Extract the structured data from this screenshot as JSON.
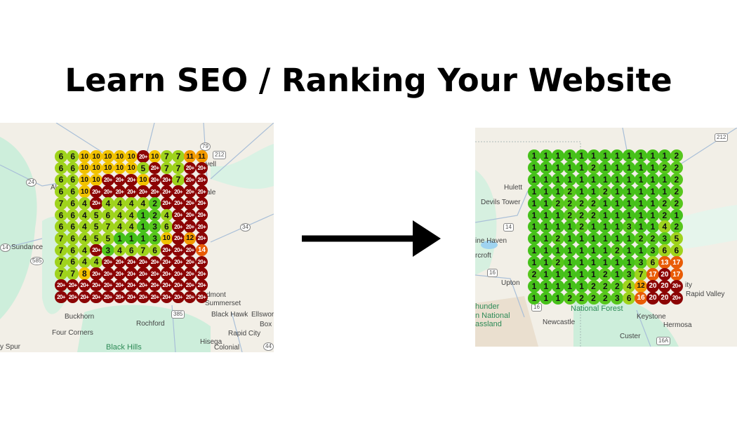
{
  "title": "Learn SEO / Ranking Your Website",
  "colors": {
    "rank_1": "#46c11a",
    "rank_2_3": "#57c71c",
    "rank_4_7": "#9fd31d",
    "rank_8_10": "#f2c200",
    "rank_11_12": "#f29a00",
    "rank_13_19": "#e95c06",
    "rank_20_plus": "#8c0404",
    "map_land": "#f2efe7",
    "map_forest": "#cdeedb",
    "arrow": "#000000"
  },
  "before_map": {
    "labels": [
      "Sundance",
      "Buckhorn",
      "Rochford",
      "Four Corners",
      "Black Hills",
      "y Spur",
      "Black Hawk",
      "Ellsworth",
      "Box E",
      "Rapid City",
      "Hisega",
      "Colonial",
      "Summerset",
      "dmont",
      "vell",
      "ale",
      "Al"
    ],
    "shields": [
      "212",
      "79",
      "24",
      "14",
      "585",
      "385",
      "34",
      "44"
    ],
    "grid": [
      [
        "6",
        "6",
        "10",
        "10",
        "10",
        "10",
        "10",
        "20+",
        "10",
        "7",
        "7",
        "11",
        "11"
      ],
      [
        "6",
        "6",
        "10",
        "10",
        "10",
        "10",
        "10",
        "5",
        "20+",
        "7",
        "7",
        "20+",
        "20+"
      ],
      [
        "6",
        "6",
        "10",
        "10",
        "20+",
        "20+",
        "20+",
        "10",
        "20+",
        "20+",
        "7",
        "20+",
        "20+"
      ],
      [
        "6",
        "6",
        "10",
        "20+",
        "20+",
        "20+",
        "20+",
        "20+",
        "20+",
        "20+",
        "20+",
        "20+",
        "20+"
      ],
      [
        "7",
        "6",
        "4",
        "20+",
        "4",
        "4",
        "4",
        "4",
        "2",
        "20+",
        "20+",
        "20+",
        "20+"
      ],
      [
        "6",
        "6",
        "4",
        "5",
        "6",
        "4",
        "4",
        "1",
        "2",
        "4",
        "20+",
        "20+",
        "20+"
      ],
      [
        "6",
        "6",
        "4",
        "5",
        "7",
        "4",
        "4",
        "1",
        "3",
        "6",
        "20+",
        "20+",
        "20+"
      ],
      [
        "7",
        "6",
        "4",
        "5",
        "5",
        "1",
        "1",
        "1",
        "3",
        "10",
        "20+",
        "12",
        "20+"
      ],
      [
        "7",
        "6",
        "4",
        "20+",
        "3",
        "4",
        "6",
        "7",
        "6",
        "20+",
        "20+",
        "20+",
        "14"
      ],
      [
        "7",
        "6",
        "4",
        "4",
        "20+",
        "20+",
        "20+",
        "20+",
        "20+",
        "20+",
        "20+",
        "20+",
        "20+"
      ],
      [
        "7",
        "7",
        "8",
        "20+",
        "20+",
        "20+",
        "20+",
        "20+",
        "20+",
        "20+",
        "20+",
        "20+",
        "20+"
      ],
      [
        "20+",
        "20+",
        "20+",
        "20+",
        "20+",
        "20+",
        "20+",
        "20+",
        "20+",
        "20+",
        "20+",
        "20+",
        "20+"
      ],
      [
        "20+",
        "20+",
        "20+",
        "20+",
        "20+",
        "20+",
        "20+",
        "20+",
        "20+",
        "20+",
        "20+",
        "20+",
        "20+"
      ]
    ]
  },
  "after_map": {
    "labels": [
      "Hulett",
      "Devils Tower",
      "ine Haven",
      "rcroft",
      "Upton",
      "hunder",
      "n National",
      "assland",
      "Newcastle",
      "National Forest",
      "Keystone",
      "Hermosa",
      "Custer",
      "Rapid Valley",
      "ity"
    ],
    "shields": [
      "212",
      "14",
      "16",
      "16",
      "16A"
    ],
    "grid": [
      [
        "1",
        "1",
        "1",
        "1",
        "1",
        "1",
        "1",
        "1",
        "1",
        "1",
        "1",
        "1",
        "2"
      ],
      [
        "1",
        "1",
        "1",
        "1",
        "1",
        "2",
        "1",
        "1",
        "1",
        "1",
        "1",
        "2",
        "2"
      ],
      [
        "1",
        "1",
        "1",
        "1",
        "1",
        "1",
        "1",
        "1",
        "1",
        "1",
        "1",
        "1",
        "2"
      ],
      [
        "1",
        "1",
        "1",
        "2",
        "1",
        "1",
        "2",
        "1",
        "1",
        "1",
        "1",
        "1",
        "2"
      ],
      [
        "1",
        "1",
        "2",
        "2",
        "2",
        "2",
        "1",
        "1",
        "1",
        "1",
        "1",
        "2",
        "2"
      ],
      [
        "1",
        "1",
        "1",
        "2",
        "2",
        "2",
        "1",
        "1",
        "1",
        "1",
        "1",
        "2",
        "1"
      ],
      [
        "1",
        "1",
        "1",
        "1",
        "2",
        "1",
        "1",
        "1",
        "3",
        "1",
        "1",
        "4",
        "2"
      ],
      [
        "1",
        "1",
        "2",
        "1",
        "1",
        "1",
        "1",
        "1",
        "1",
        "2",
        "2",
        "3",
        "5"
      ],
      [
        "1",
        "1",
        "1",
        "1",
        "1",
        "1",
        "1",
        "2",
        "1",
        "1",
        "3",
        "6",
        "6"
      ],
      [
        "1",
        "1",
        "2",
        "1",
        "1",
        "1",
        "1",
        "1",
        "1",
        "3",
        "6",
        "13",
        "17"
      ],
      [
        "2",
        "1",
        "1",
        "1",
        "1",
        "1",
        "2",
        "1",
        "3",
        "7",
        "17",
        "20",
        "17"
      ],
      [
        "1",
        "1",
        "1",
        "1",
        "1",
        "2",
        "2",
        "2",
        "4",
        "12",
        "20",
        "20",
        "20+"
      ],
      [
        "1",
        "1",
        "1",
        "2",
        "2",
        "2",
        "2",
        "3",
        "6",
        "16",
        "20",
        "20",
        "20+"
      ]
    ]
  }
}
